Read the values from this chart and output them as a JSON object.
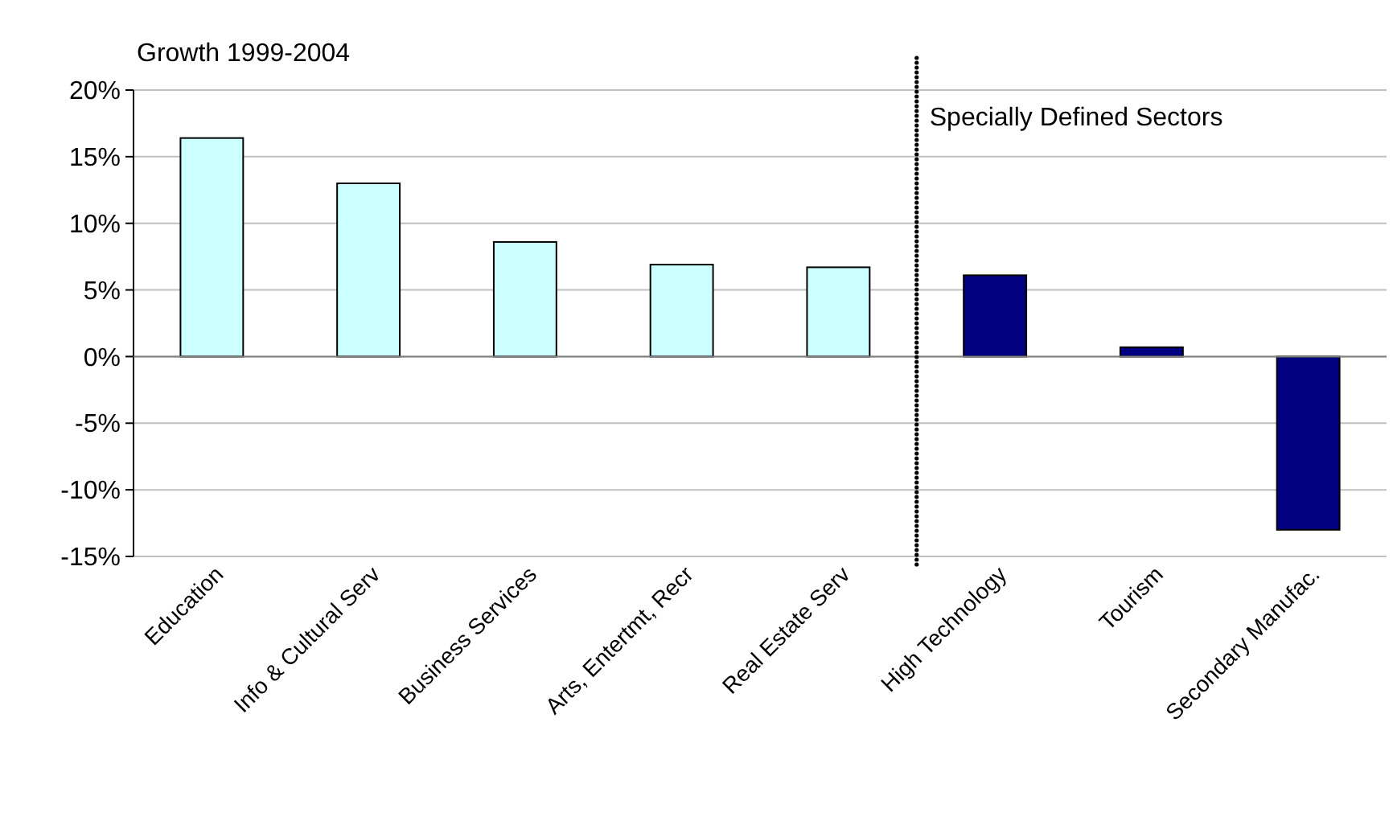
{
  "chart_data": {
    "type": "bar",
    "title": "Growth 1999-2004",
    "categories": [
      "Education",
      "Info & Cultural Serv",
      "Business Services",
      "Arts, Entertmt, Recr",
      "Real Estate Serv",
      "High Technology",
      "Tourism",
      "Secondary Manufac."
    ],
    "values": [
      16.4,
      13.0,
      8.6,
      6.9,
      6.7,
      6.1,
      0.7,
      -13.0
    ],
    "colors": [
      "#ccffff",
      "#ccffff",
      "#ccffff",
      "#ccffff",
      "#ccffff",
      "#000080",
      "#000080",
      "#000080"
    ],
    "ylim": [
      -15,
      20
    ],
    "yticks": [
      {
        "value": -15,
        "label": "-15%"
      },
      {
        "value": -10,
        "label": "-10%"
      },
      {
        "value": -5,
        "label": "-5%"
      },
      {
        "value": 0,
        "label": "0%"
      },
      {
        "value": 5,
        "label": "5%"
      },
      {
        "value": 10,
        "label": "10%"
      },
      {
        "value": 15,
        "label": "15%"
      },
      {
        "value": 20,
        "label": "20%"
      }
    ],
    "grid": "y",
    "annotations": [
      "Specially Defined Sectors"
    ]
  }
}
